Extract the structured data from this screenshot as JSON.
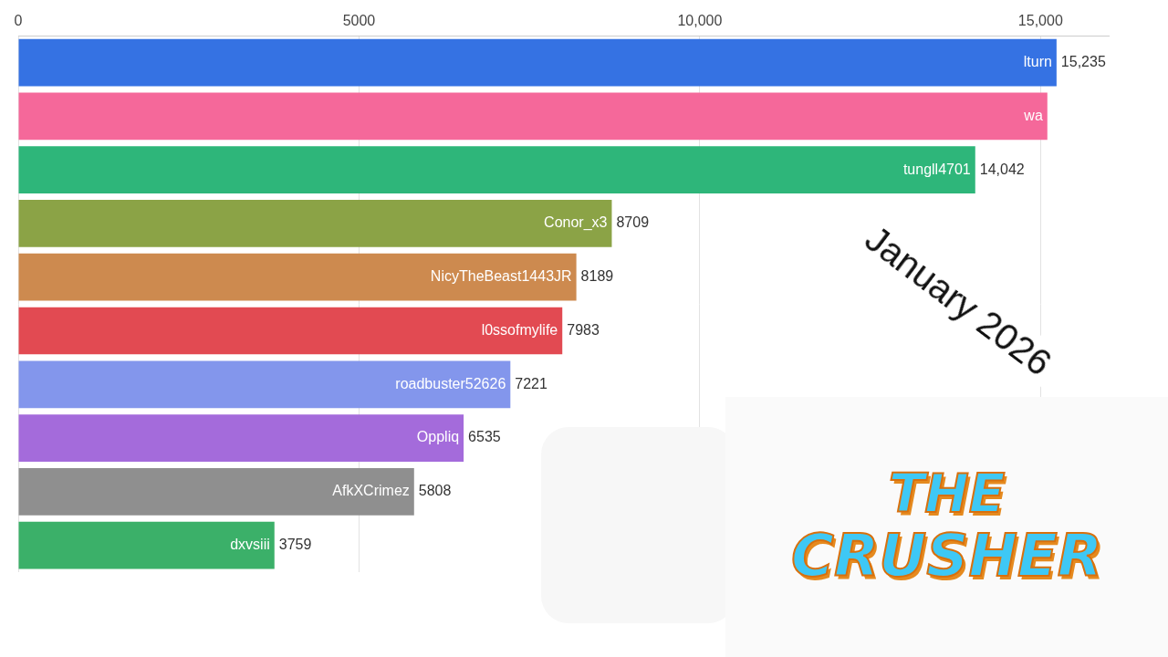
{
  "chart_data": {
    "type": "bar",
    "orientation": "horizontal",
    "categories": [
      "lturn",
      "wa",
      "tungll4701",
      "Conor_x3",
      "NicyTheBeast1443JR",
      "l0ssofmylife",
      "roadbuster52626",
      "Oppliq",
      "AfkXCrimez",
      "dxvsiii"
    ],
    "values": [
      15235,
      15100,
      14042,
      8709,
      8189,
      7983,
      7221,
      6535,
      5808,
      3759
    ],
    "value_labels": [
      "15,235",
      null,
      "14,042",
      "8709",
      "8189",
      "7983",
      "7221",
      "6535",
      "5808",
      "3759"
    ],
    "colors": [
      "#3572e3",
      "#f5689a",
      "#2eb67a",
      "#8ba346",
      "#cd8a4f",
      "#e24a52",
      "#8396ec",
      "#a46bdb",
      "#8f8f8f",
      "#3bb069"
    ],
    "xlim": [
      0,
      16000
    ],
    "xticks": [
      0,
      5000,
      {
        "value": 10000,
        "label": "10,000"
      },
      {
        "value": 15000,
        "label": "15,000"
      }
    ],
    "grid": true,
    "data_labels": true,
    "tick_labels": "x",
    "annotations": [
      "January 2026",
      "THE CRUSHER"
    ]
  }
}
